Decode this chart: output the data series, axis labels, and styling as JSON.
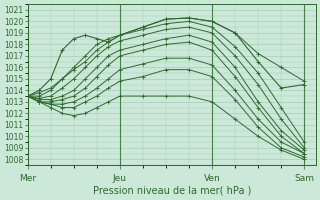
{
  "xlabel": "Pression niveau de la mer( hPa )",
  "ylim": [
    1007.5,
    1021.5
  ],
  "xlim": [
    0,
    75
  ],
  "yticks": [
    1008,
    1009,
    1010,
    1011,
    1012,
    1013,
    1014,
    1015,
    1016,
    1017,
    1018,
    1019,
    1020,
    1021
  ],
  "xtick_positions": [
    0,
    24,
    48,
    72
  ],
  "xtick_labels": [
    "Mer",
    "Jeu",
    "Ven",
    "Sam"
  ],
  "line_color": "#2d6a2d",
  "bg_color": "#cce8d8",
  "grid_color": "#a8ccb8",
  "lines": [
    [
      0,
      1013.5,
      3,
      1013.8,
      6,
      1014.2,
      9,
      1015.0,
      12,
      1015.8,
      15,
      1016.5,
      18,
      1017.5,
      21,
      1018.2,
      24,
      1018.8,
      30,
      1019.5,
      36,
      1020.2,
      42,
      1020.3,
      48,
      1020.0,
      54,
      1019.0,
      60,
      1017.2,
      66,
      1016.0,
      72,
      1014.8
    ],
    [
      0,
      1013.5,
      3,
      1013.5,
      6,
      1014.0,
      9,
      1015.0,
      12,
      1016.0,
      15,
      1017.0,
      18,
      1018.0,
      21,
      1018.5,
      24,
      1018.8,
      30,
      1019.3,
      36,
      1019.8,
      42,
      1020.0,
      48,
      1019.5,
      54,
      1017.8,
      60,
      1015.5,
      66,
      1012.5,
      72,
      1009.5
    ],
    [
      0,
      1013.5,
      3,
      1013.3,
      6,
      1013.5,
      9,
      1014.2,
      12,
      1015.0,
      15,
      1016.0,
      18,
      1017.0,
      21,
      1017.8,
      24,
      1018.3,
      30,
      1018.8,
      36,
      1019.3,
      42,
      1019.5,
      48,
      1019.0,
      54,
      1017.0,
      60,
      1014.5,
      66,
      1011.5,
      72,
      1009.0
    ],
    [
      0,
      1013.5,
      3,
      1013.2,
      6,
      1013.2,
      9,
      1013.5,
      12,
      1014.0,
      15,
      1015.0,
      18,
      1016.0,
      21,
      1017.0,
      24,
      1017.5,
      30,
      1018.0,
      36,
      1018.5,
      42,
      1018.8,
      48,
      1018.2,
      54,
      1016.0,
      60,
      1013.0,
      66,
      1010.5,
      72,
      1008.8
    ],
    [
      0,
      1013.5,
      3,
      1013.0,
      6,
      1013.0,
      9,
      1013.2,
      12,
      1013.5,
      15,
      1014.2,
      18,
      1015.2,
      21,
      1016.2,
      24,
      1017.0,
      30,
      1017.5,
      36,
      1018.0,
      42,
      1018.2,
      48,
      1017.5,
      54,
      1015.2,
      60,
      1012.5,
      66,
      1010.0,
      72,
      1008.5
    ],
    [
      0,
      1013.5,
      3,
      1013.0,
      6,
      1012.8,
      9,
      1012.8,
      12,
      1013.0,
      15,
      1013.5,
      18,
      1014.2,
      21,
      1015.0,
      24,
      1015.8,
      30,
      1016.3,
      36,
      1016.8,
      42,
      1016.8,
      48,
      1016.2,
      54,
      1014.0,
      60,
      1011.5,
      66,
      1009.5,
      72,
      1008.5
    ],
    [
      0,
      1013.5,
      3,
      1013.0,
      6,
      1012.8,
      9,
      1012.5,
      12,
      1012.5,
      15,
      1013.0,
      18,
      1013.5,
      21,
      1014.2,
      24,
      1014.8,
      30,
      1015.2,
      36,
      1015.8,
      42,
      1015.8,
      48,
      1015.2,
      54,
      1013.2,
      60,
      1010.8,
      66,
      1009.0,
      72,
      1008.2
    ],
    [
      0,
      1013.5,
      3,
      1013.0,
      6,
      1012.5,
      9,
      1012.0,
      12,
      1011.8,
      15,
      1012.0,
      18,
      1012.5,
      21,
      1013.0,
      24,
      1013.5,
      30,
      1013.5,
      36,
      1013.5,
      42,
      1013.5,
      48,
      1013.0,
      54,
      1011.5,
      60,
      1010.0,
      66,
      1008.8,
      72,
      1008.0
    ]
  ],
  "early_loop_line": [
    0,
    1013.5,
    3,
    1014.0,
    6,
    1015.0,
    9,
    1017.5,
    12,
    1018.5,
    15,
    1018.8,
    18,
    1018.5,
    21,
    1018.2,
    24,
    1018.8,
    30,
    1019.5,
    36,
    1020.2,
    42,
    1020.3,
    48,
    1020.0,
    54,
    1019.0,
    60,
    1016.5,
    66,
    1014.2,
    72,
    1014.5
  ],
  "vline_positions": [
    0,
    24,
    48,
    72
  ],
  "marker_step": 3
}
